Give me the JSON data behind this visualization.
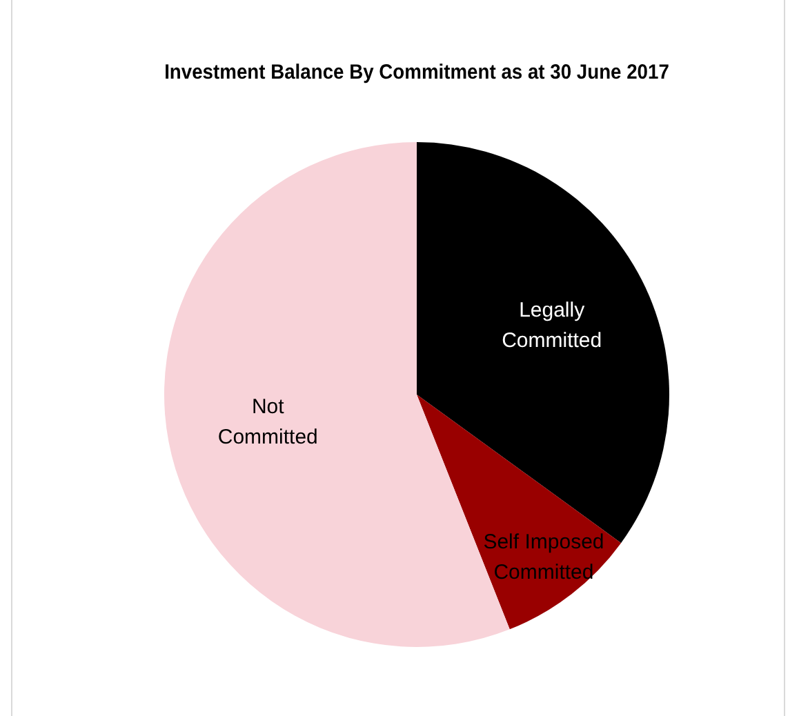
{
  "chart_data": {
    "type": "pie",
    "title": "Investment Balance By Commitment as at 30 June 2017",
    "categories": [
      "Legally Committed",
      "Self Imposed Committed",
      "Not Committed"
    ],
    "values": [
      35,
      9,
      56
    ],
    "colors": [
      "#000000",
      "#990000",
      "#f8d3d9"
    ],
    "legend": false
  }
}
